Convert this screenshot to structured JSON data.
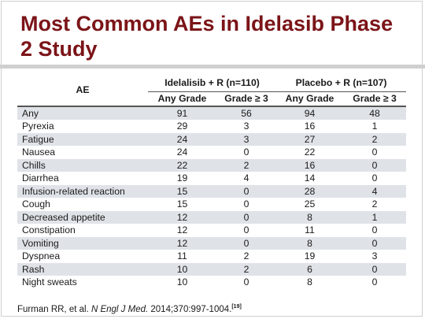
{
  "title": "Most Common AEs in Idelasib Phase 2 Study",
  "table": {
    "ae_header": "AE",
    "groups": [
      "Idelalisib + R (n=110)",
      "Placebo + R (n=107)"
    ],
    "subheaders": [
      "Any Grade",
      "Grade ≥ 3",
      "Any Grade",
      "Grade ≥ 3"
    ],
    "rows": [
      {
        "ae": "Any",
        "values": [
          "91",
          "56",
          "94",
          "48"
        ]
      },
      {
        "ae": "Pyrexia",
        "values": [
          "29",
          "3",
          "16",
          "1"
        ]
      },
      {
        "ae": "Fatigue",
        "values": [
          "24",
          "3",
          "27",
          "2"
        ]
      },
      {
        "ae": "Nausea",
        "values": [
          "24",
          "0",
          "22",
          "0"
        ]
      },
      {
        "ae": "Chills",
        "values": [
          "22",
          "2",
          "16",
          "0"
        ]
      },
      {
        "ae": "Diarrhea",
        "values": [
          "19",
          "4",
          "14",
          "0"
        ]
      },
      {
        "ae": "Infusion-related reaction",
        "values": [
          "15",
          "0",
          "28",
          "4"
        ]
      },
      {
        "ae": "Cough",
        "values": [
          "15",
          "0",
          "25",
          "2"
        ]
      },
      {
        "ae": "Decreased appetite",
        "values": [
          "12",
          "0",
          "8",
          "1"
        ]
      },
      {
        "ae": "Constipation",
        "values": [
          "12",
          "0",
          "11",
          "0"
        ]
      },
      {
        "ae": "Vomiting",
        "values": [
          "12",
          "0",
          "8",
          "0"
        ]
      },
      {
        "ae": "Dyspnea",
        "values": [
          "11",
          "2",
          "19",
          "3"
        ]
      },
      {
        "ae": "Rash",
        "values": [
          "10",
          "2",
          "6",
          "0"
        ]
      },
      {
        "ae": "Night sweats",
        "values": [
          "10",
          "0",
          "8",
          "0"
        ]
      }
    ]
  },
  "footnote": {
    "authors": "Furman RR, et al. ",
    "journal": "N Engl J Med.",
    "citation": " 2014;370:997-1004.",
    "ref": "[19]"
  },
  "colors": {
    "title": "#7b1418",
    "row_shade": "#dfe3e8"
  }
}
